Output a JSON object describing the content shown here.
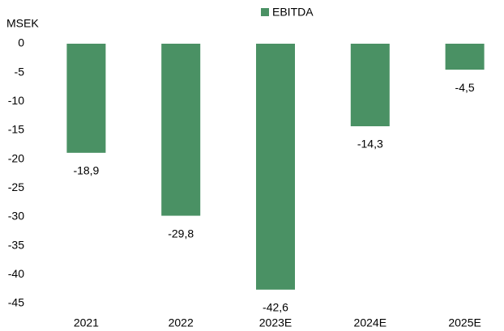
{
  "chart_data": {
    "type": "bar",
    "y_axis_label": "MSEK",
    "categories": [
      "2021",
      "2022",
      "2023E",
      "2024E",
      "2025E"
    ],
    "series": [
      {
        "name": "EBITDA",
        "color": "#4a9164",
        "values": [
          -18.9,
          -29.8,
          -42.6,
          -14.3,
          -4.5
        ],
        "value_labels": [
          "-18,9",
          "-29,8",
          "-42,6",
          "-14,3",
          "-4,5"
        ]
      }
    ],
    "ylim": [
      -45,
      0
    ],
    "yticks": [
      0,
      -5,
      -10,
      -15,
      -20,
      -25,
      -30,
      -35,
      -40,
      -45
    ],
    "legend": "top"
  }
}
